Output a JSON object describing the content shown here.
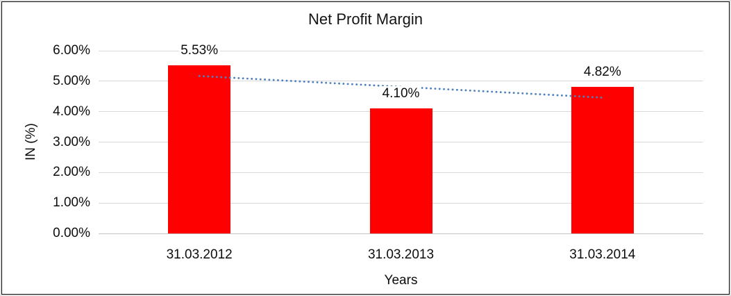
{
  "chart_data": {
    "type": "bar",
    "title": "Net Profit Margin",
    "xlabel": "Years",
    "ylabel": "IN (%)",
    "categories": [
      "31.03.2012",
      "31.03.2013",
      "31.03.2014"
    ],
    "values": [
      5.53,
      4.1,
      4.82
    ],
    "data_labels": [
      "5.53%",
      "4.10%",
      "4.82%"
    ],
    "y_tick_labels": [
      "0.00%",
      "1.00%",
      "2.00%",
      "3.00%",
      "4.00%",
      "5.00%",
      "6.00%"
    ],
    "ylim": [
      0,
      6
    ],
    "y_tick_step": 1,
    "grid": true,
    "legend": false,
    "bar_color": "#ff0000",
    "trendline": {
      "type": "linear",
      "style": "dotted",
      "color": "#4d81be",
      "points": [
        5.17,
        4.46
      ]
    },
    "colors": {
      "gridline": "#d9d9d9",
      "axis_line": "#c3c3c3",
      "text": "#0d0d0d",
      "plot_background": "#ffffff",
      "outer_edge": "#e2e2e2",
      "frame_border": "#0b0b0b"
    }
  }
}
